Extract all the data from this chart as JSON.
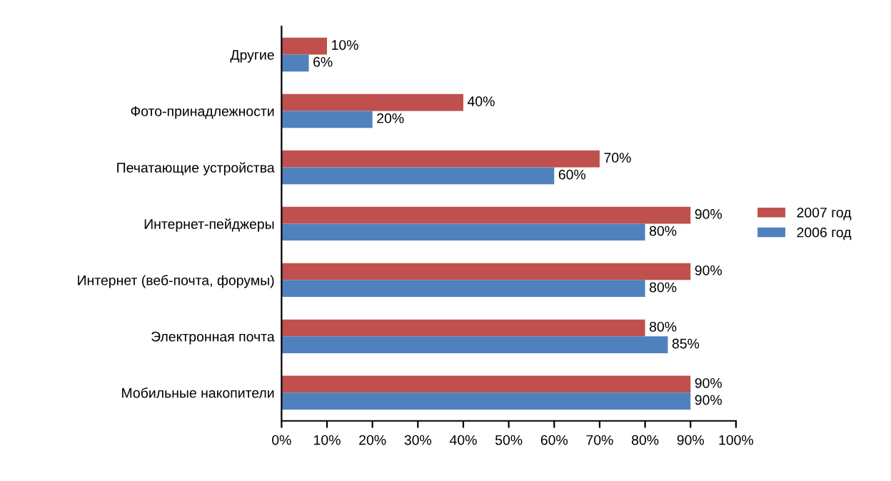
{
  "chart_data": {
    "type": "bar",
    "orientation": "horizontal",
    "categories": [
      "Другие",
      "Фото-принадлежности",
      "Печатающие устройства",
      "Интернет-пейджеры",
      "Интернет (веб-почта, форумы)",
      "Электронная почта",
      "Мобильные накопители"
    ],
    "series": [
      {
        "name": "2007 год",
        "color": "#c0504d",
        "values": [
          10,
          40,
          70,
          90,
          90,
          80,
          90
        ],
        "value_labels": [
          "10%",
          "40%",
          "70%",
          "90%",
          "90%",
          "80%",
          "90%"
        ]
      },
      {
        "name": "2006 год",
        "color": "#4f81bd",
        "values": [
          6,
          20,
          60,
          80,
          80,
          85,
          90
        ],
        "value_labels": [
          "6%",
          "20%",
          "60%",
          "80%",
          "80%",
          "85%",
          "90%"
        ]
      }
    ],
    "xlim": [
      0,
      100
    ],
    "xticks": [
      {
        "value": 0,
        "label": "0%"
      },
      {
        "value": 10,
        "label": "10%"
      },
      {
        "value": 20,
        "label": "20%"
      },
      {
        "value": 30,
        "label": "30%"
      },
      {
        "value": 40,
        "label": "40%"
      },
      {
        "value": 50,
        "label": "50%"
      },
      {
        "value": 60,
        "label": "60%"
      },
      {
        "value": 70,
        "label": "70%"
      },
      {
        "value": 80,
        "label": "80%"
      },
      {
        "value": 90,
        "label": "90%"
      },
      {
        "value": 100,
        "label": "100%"
      }
    ],
    "grid": false,
    "legend": "right"
  }
}
